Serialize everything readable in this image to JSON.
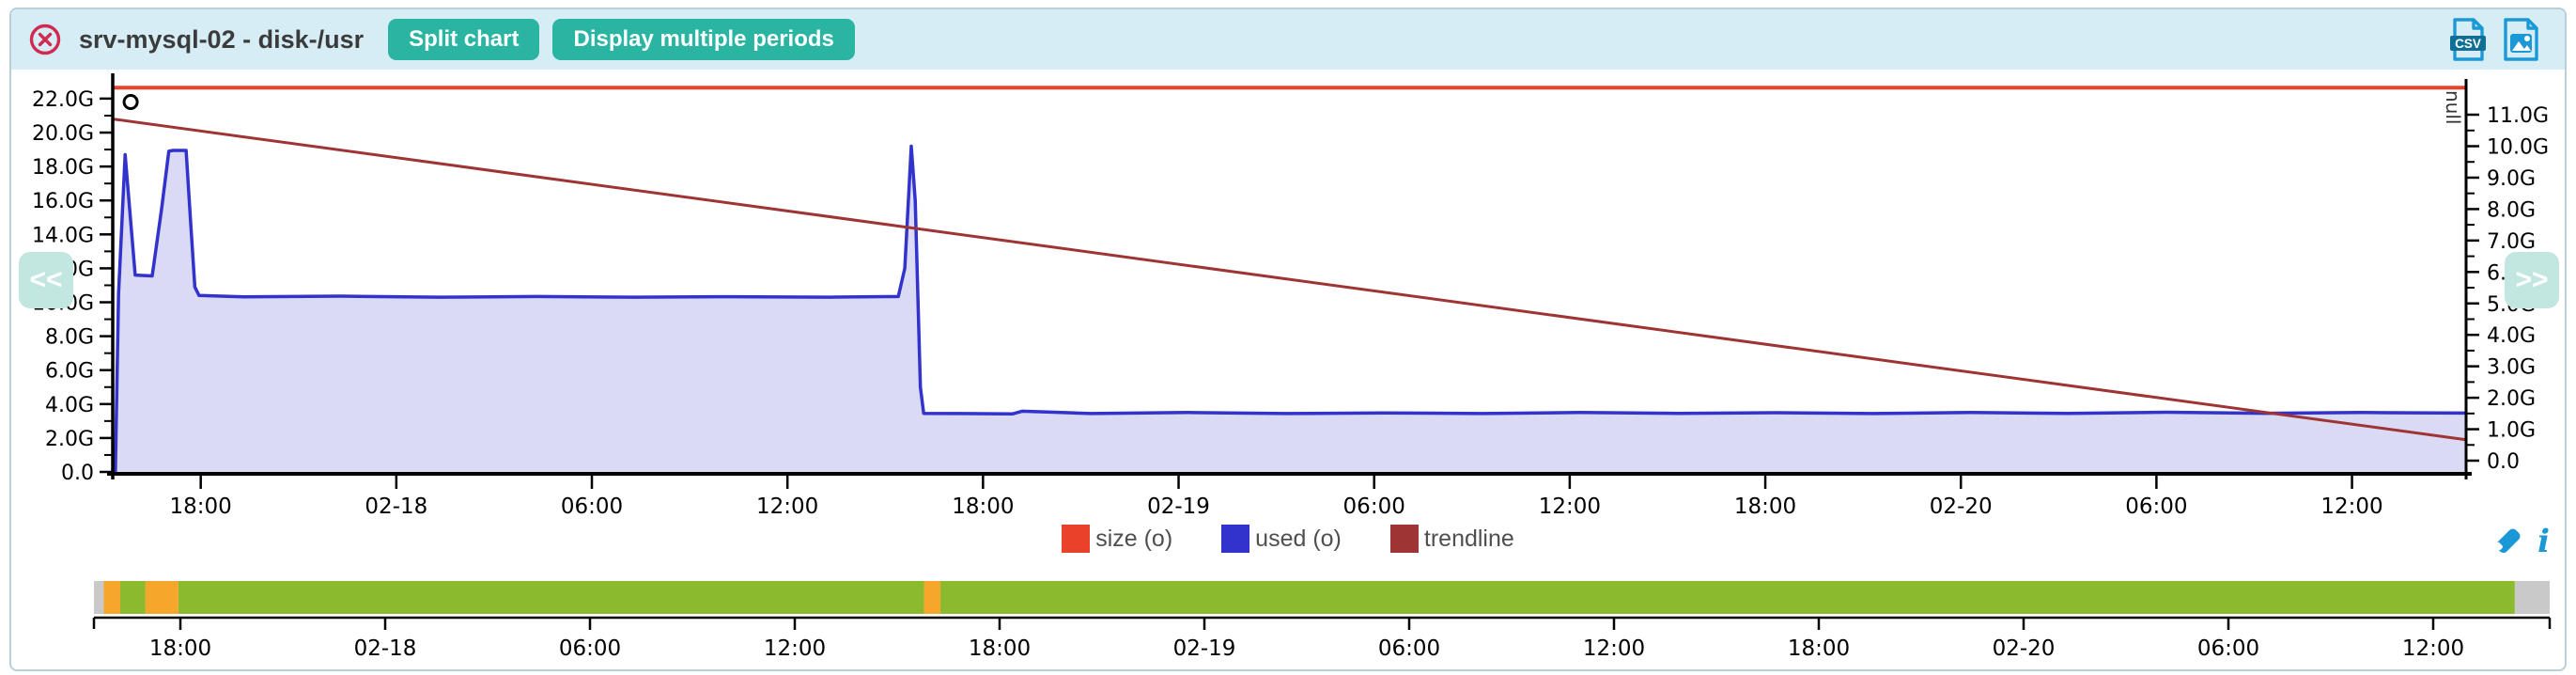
{
  "theme": {
    "header_bg": "#d7edf6",
    "panel_border": "#b9cfda",
    "button_color": "#2ab5a2",
    "close_color": "#d02a52",
    "export_icon_color": "#1b98d6",
    "tool_icon_color": "#1b98d6",
    "nav_button_bg": "#c2e7e0",
    "axis_text_color": "#000000"
  },
  "header": {
    "title": "srv-mysql-02 - disk-/usr",
    "close_icon": "close-icon",
    "split_button": "Split chart",
    "periods_button": "Display multiple periods",
    "csv_icon_label": "CSV",
    "icons": [
      "csv-export-icon",
      "image-export-icon"
    ]
  },
  "nav": {
    "prev": "<<",
    "next": ">>"
  },
  "tools": {
    "icons": [
      "pencil-icon",
      "info-icon"
    ],
    "info_glyph": "i"
  },
  "chart_data": {
    "type": "area",
    "title": "srv-mysql-02 - disk-/usr",
    "grid": false,
    "legend_position": "bottom-center",
    "x_axis": {
      "tick_labels": [
        "18:00",
        "02-18",
        "06:00",
        "12:00",
        "18:00",
        "02-19",
        "06:00",
        "12:00",
        "18:00",
        "02-20",
        "06:00",
        "12:00"
      ],
      "tick_interval_hours": 6,
      "first_tick_offset_hours": 2.7,
      "span_hours": 72.2
    },
    "y_left": {
      "unit": "G",
      "max": 23.16,
      "ticks": [
        [
          22,
          "22.0G"
        ],
        [
          20,
          "20.0G"
        ],
        [
          18,
          "18.0G"
        ],
        [
          16,
          "16.0G"
        ],
        [
          14,
          "14.0G"
        ],
        [
          12,
          "12.0G"
        ],
        [
          10,
          "10.0G"
        ],
        [
          8,
          "8.0G"
        ],
        [
          6,
          "6.0G"
        ],
        [
          4,
          "4.0G"
        ],
        [
          2,
          "2.0G"
        ],
        [
          0,
          "0.0"
        ]
      ]
    },
    "y_right": {
      "label": "null",
      "unit": "G",
      "ticks": [
        [
          11,
          "11.0G"
        ],
        [
          10,
          "10.0G"
        ],
        [
          9,
          "9.0G"
        ],
        [
          8,
          "8.0G"
        ],
        [
          7,
          "7.0G"
        ],
        [
          6,
          "6.0G"
        ],
        [
          5,
          "5.0G"
        ],
        [
          4,
          "4.0G"
        ],
        [
          3,
          "3.0G"
        ],
        [
          2,
          "2.0G"
        ],
        [
          1,
          "1.0G"
        ],
        [
          0,
          "0.0"
        ]
      ]
    },
    "marker": {
      "glyph": "o",
      "hours": 0.55,
      "value": 21.8
    },
    "series": [
      {
        "name": "size (o)",
        "type": "hline",
        "color": "#e8432a",
        "value": 22.65
      },
      {
        "name": "used (o)",
        "type": "area",
        "color": "#3232cc",
        "fill": "#dadaf4",
        "points": [
          [
            0.08,
            0
          ],
          [
            0.18,
            10.5
          ],
          [
            0.38,
            18.7
          ],
          [
            0.52,
            15.5
          ],
          [
            0.69,
            11.6
          ],
          [
            1.21,
            11.55
          ],
          [
            1.5,
            15.5
          ],
          [
            1.72,
            18.9
          ],
          [
            1.85,
            18.95
          ],
          [
            2.25,
            18.95
          ],
          [
            2.38,
            15.0
          ],
          [
            2.52,
            10.9
          ],
          [
            2.65,
            10.4
          ],
          [
            4,
            10.32
          ],
          [
            7,
            10.36
          ],
          [
            10,
            10.3
          ],
          [
            13,
            10.34
          ],
          [
            16,
            10.3
          ],
          [
            19,
            10.33
          ],
          [
            22,
            10.3
          ],
          [
            24.1,
            10.34
          ],
          [
            24.3,
            12.0
          ],
          [
            24.5,
            19.2
          ],
          [
            24.62,
            16.0
          ],
          [
            24.78,
            5.0
          ],
          [
            24.88,
            3.45
          ],
          [
            26,
            3.44
          ],
          [
            27.6,
            3.42
          ],
          [
            27.9,
            3.58
          ],
          [
            28.9,
            3.52
          ],
          [
            30,
            3.44
          ],
          [
            33,
            3.5
          ],
          [
            36,
            3.44
          ],
          [
            39,
            3.48
          ],
          [
            42,
            3.44
          ],
          [
            45,
            3.5
          ],
          [
            48,
            3.45
          ],
          [
            51,
            3.49
          ],
          [
            54,
            3.44
          ],
          [
            57,
            3.5
          ],
          [
            60,
            3.45
          ],
          [
            63,
            3.52
          ],
          [
            66,
            3.46
          ],
          [
            69,
            3.5
          ],
          [
            72.2,
            3.47
          ]
        ]
      },
      {
        "name": "trendline",
        "type": "line",
        "color": "#9e3434",
        "points": [
          [
            0,
            20.8
          ],
          [
            72.2,
            1.9
          ]
        ]
      }
    ]
  },
  "timeline": {
    "tick_labels": [
      "18:00",
      "02-18",
      "06:00",
      "12:00",
      "18:00",
      "02-19",
      "06:00",
      "12:00",
      "18:00",
      "02-20",
      "06:00",
      "12:00"
    ],
    "colors": {
      "ok": "#8cba2f",
      "warning": "#f7a62c",
      "unknown": "#c9c9c9"
    },
    "segments": [
      {
        "from": 0.0,
        "to": 0.004,
        "color": "#c9c9c9"
      },
      {
        "from": 0.004,
        "to": 0.0107,
        "color": "#f7a62c"
      },
      {
        "from": 0.0107,
        "to": 0.021,
        "color": "#8cba2f"
      },
      {
        "from": 0.021,
        "to": 0.0344,
        "color": "#f7a62c"
      },
      {
        "from": 0.0344,
        "to": 0.338,
        "color": "#8cba2f"
      },
      {
        "from": 0.338,
        "to": 0.3447,
        "color": "#f7a62c"
      },
      {
        "from": 0.3447,
        "to": 0.9858,
        "color": "#8cba2f"
      },
      {
        "from": 0.9858,
        "to": 1.0,
        "color": "#c9c9c9"
      }
    ]
  }
}
